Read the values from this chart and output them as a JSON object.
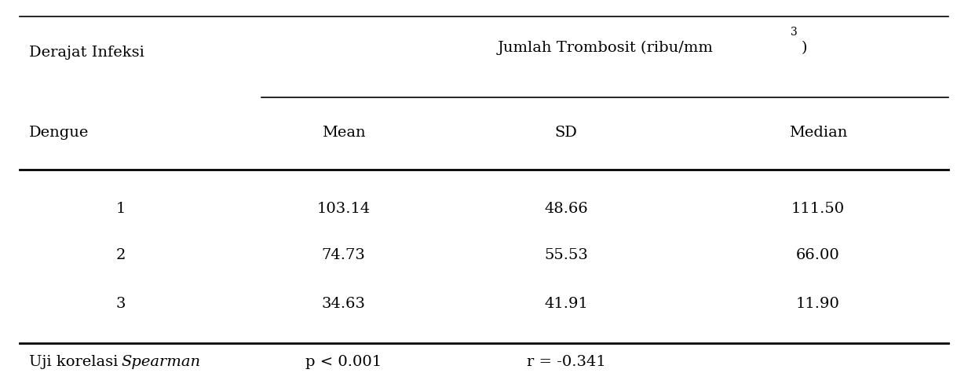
{
  "title_left": "Derajat Infeksi",
  "title_left2": "Dengue",
  "title_right_base": "Jumlah Trombosit (ribu/mm",
  "title_right_super": "3",
  "title_right_suffix": ")",
  "col_headers": [
    "Mean",
    "SD",
    "Median"
  ],
  "rows": [
    [
      "1",
      "103.14",
      "48.66",
      "111.50"
    ],
    [
      "2",
      "74.73",
      "55.53",
      "66.00"
    ],
    [
      "3",
      "34.63",
      "41.91",
      "11.90"
    ]
  ],
  "footer_label": "Uji korelasi ",
  "footer_italic": "Spearman",
  "footer_p": "p < 0.001",
  "footer_r": "r = -0.341",
  "bg_color": "#ffffff",
  "font_size": 14,
  "font_family": "DejaVu Serif"
}
